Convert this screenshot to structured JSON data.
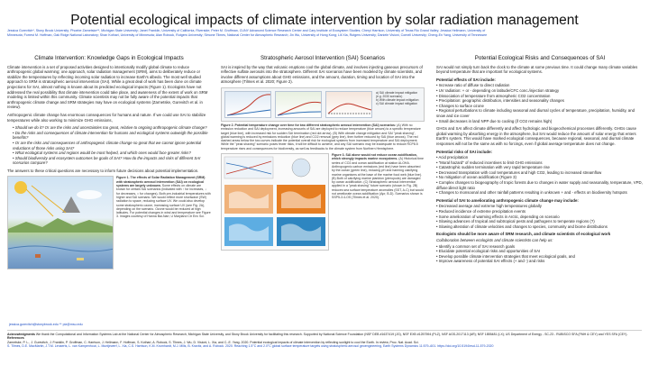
{
  "title": "Potential ecological impacts of climate intervention by solar radiation management",
  "authors": {
    "line1": "Jessica Gurevitch*, Stony Brook University; Phoebe Zarnetske**, Michigan State University; Janet Franklin, University of California, Riverside; Peter M. Groffman, CUNY Advanced Science Research Center and Cary Institute of Ecosystem Studies; Cheryl Harrison, University of Texas Rio Grand Valley; Jessica Hellmann, University of",
    "line2": "Minnesota; Forrest M. Hoffman, Oak Ridge National Laboratory; Shan Kothari, University of Minnesota; Alan Robock, Rutgers University; Simone Tilmes, National Center for Atmospheric Research; Jin Wu, University of Hong Kong; Lili Xia, Rutgers University; Daniele Visioni, Cornell University; Cheng-En Yang, University of Tennessee"
  },
  "col1": {
    "heading": "Climate Intervention: Knowledge Gaps in Ecological Impacts",
    "p1": "Climate intervention is a set of proposed activities designed to intentionally modify global climate to reduce anthropogenic global warming; one approach, solar radiation management (SRM), aims to deliberately reduce or stabilize the temperatures by reflecting incoming solar radiation to increase Earth's albedo. The most well studied approach to SRM is stratospheric aerosol intervention (SAI). While a great deal of work has been done on climate projections for SAI, almost nothing is known about its predicted ecological impacts (Figure 1). Ecologists have not addressed the real possibility that climate intervention could take place, and awareness of the extent of work on SRM modeling is limited within this community. Climate scientists may not be fully aware of the potential impacts that anthropogenic climate change and SRM strategies may have on ecological systems (Zarnetske, Gurevitch et al. in review).",
    "p2": "Anthropogenic climate change has enormous consequences for humans and nature. If we could use SAI to stabilize temperatures while also working to minimize GHG emissions,",
    "questions": [
      "Should we do it? Or are the risks and uncertainties too great, relative to ongoing anthropogenic climate change?",
      "Do the risks and consequences of climate intervention for humans and ecological systems outweigh the possible benefits?",
      "Or are the risks and consequences of anthropogenic climate change so great that we cannot ignore potential reductions of those risks using SAI?",
      "What ecological systems and regions would be most helped, and which ones would face greater risks?",
      "Should biodiversity and ecosystem outcomes be goals of SAI? How do the impacts and risks of different SAI scenarios compare?"
    ],
    "p3": "The answers to these critical questions are necessary to inform future decisions about potential implementation.",
    "fig1_caption_title": "Figure 1. The effects of Solar Radiation Management (SRM) with stratospheric aerosol intervention (SAI) on ecological systems are largely unknown.",
    "fig1_caption_body": "Some effects on climate are known for certain SAI scenarios (indicated with ↑ for increases, ↓ for decreases, ≈ for changes). Both pre-industrial temperatures with higher and SAI scenario. We would reflect more shortwave (SW) radiation to space, reducing surface UV. We could also develop some stratospheric ozone, increasing surface UV (see Fig. 2A), depending on the scenario. Ozone would be reduced at high latitudes. For potential changes in wind and temperature see Figure 3. Images courtesy of Hanna Bai-Narr, U Maryland Ctr Env Sci."
  },
  "col2": {
    "heading": "Stratospheric Aerosol Intervention (SAI) Scenarios",
    "p1": "SAI is inspired by the way that volcanic eruptions cool the global climate, and involves injecting gaseous precursors of reflective sulfate aerosols into the stratosphere. Different SAI scenarios have been modeled by climate scientists, and involve different assumptions about GHG emissions, and the amount, duration, timing and location of SAI into the atmosphere (Tilmes et al. 2020; Figure 2).",
    "panel_a": "a) SAI climate impact mitigation (e.g. 2030 scenario)",
    "panel_b": "b) With climate impact mitigation",
    "panel_c": "c) SAI climate impact mitigation",
    "fig2_caption_title": "Figure 2. Potential temperature change over time for two different stratospheric aerosol intervention (SAI) scenarios:",
    "fig2_caption_body": "(A) With no emission reduction and SAI deployment, increasing amounts of SAI are deployed to reduce temperature (blue arrows) to a specific temperature target (blue line), with increased risk for sudden SAI termination (red dot arrow). (B) With climate change mitigation and SAI \"peak shaving\", global warming is reduced by emissions reduction (blue line) and CO2 removal (grey line), then further reduced by SAI (blue arrows). The red dashed areas below the two curves indicate the potential overall risk for ecological systems from increased temperature and SAI deployment. While the \"peak shaving\" scenario poses fewer risks, it will be difficult to achieve, and any SAI scenario may be inadequate to reduce RCP8.5 temperature rises and consequences for biodiversity, as well as feedbacks to the climate system from Northern Hemisphere.",
    "fig3_caption_title": "Figure 3. SAI alone would not reduce ocean acidification, which strongly impacts marine ecosystems.",
    "fig3_caption_body": "(A) Historical time series of CO2 and ocean acidification at station ALOHA. Anthropogenic carbon emissions (red line) have been absorbed by the ocean (green line), reducing pH and harming calcifying marine organisms at the base of the marine food web (blue line). (B) Both of calcifying marine plankton (pteropods) are damaged by ocean acidification. (C) Stratospheric aerosol intervention applied in a \"peak shaving\" future scenario (shown in Fig. 2B) reduces sea surface temperature anomalies (SST, A-C) but would not ameliorate ocean acidification (Apr, B-D). Scenarios shown is SSP5-3.4-OS (Tilmes et al. 2020)."
  },
  "col3": {
    "heading": "Potential Ecological Risks and Consequences of SAI",
    "p1": "SAI would not simply turn back the clock to the climate at some previous time. It could change many climate variables beyond temperature that are important for ecological systems.",
    "effects_title": "Potential effects of SAI include:",
    "effects": [
      "Increase ratio of diffuse to direct radiation",
      "UV radiation: + or - depending on latitude/CFC conc./injection strategy",
      "Dissociation of temperature from atmospheric CO2 concentration",
      "Precipitation: geographic distribution, intensities and seasonality changes",
      "Changes to surface ozone",
      "Regional perturbations to climate including seasonal and diurnal cycles of temperature, precipitation, humidity, and snow and ice cover",
      "Small decreases in land NPP due to cooling (if CO2 remains high)"
    ],
    "p2": "GHGs and SAI affect climate differently and affect hydrologic and biogeochemical processes differently. GHGs cause global warming by absorbing energy in the atmosphere, but SAI would reduce the amount of solar energy that enters Earth's system. This would have marked ecological consequences, because regional, seasonal, and diurnal climate responses will not be the same as with no forcings, even if global average temperature does not change.",
    "risks_title": "Potential risks of SAI include:",
    "risks": [
      "Acid precipitation",
      "\"Moral hazard\" of reduced incentives to limit GHG emissions",
      "Catastrophic sudden termination with very rapid temperature rise",
      "Decreased transpiration with cool temperatures and high CO2, leading to increased streamflow",
      "No mitigation of ocean acidification  (Figure 3)",
      "Complex changes to biogeography of tropic forests due to changes in water supply and seasonality, temperature, VPD, diffuse:direct light ratio",
      "Changes to monsoonal and other rainfall patterns resulting in unknown + and - effects on biodiversity hotspots"
    ],
    "benefits_title": "Potential of SAI to ameliorating anthropogenic climate change may include:",
    "benefits": [
      "Decreased average and extreme high temperatures globally",
      "Reduced incidence of extreme precipitation events",
      "Some amelioration of warming effects in Arctic, depending on scenario",
      "Slowing advances of tropical and subtropical pests and pathogens to temperate regions (?)",
      "Slowing alteration of climate velocities and changes to species, community and biome distributions"
    ],
    "todo_title": "Ecologists should be more aware of SRM research, and climate scientists of ecological work",
    "todo_sub": "Collaboration between ecologists and climate scientists can help us:",
    "todo": [
      "Identify a common set of SAI research goals",
      "Elucidate potential ecological risks and opportunities of SAI",
      "Develop possible climate intervention strategies that meet ecological goals, and",
      "Improve awareness of potential SAI effects (+ and -) and risks"
    ]
  },
  "email": "jessica.gurevitch@stonybrook.edu  ** plz@msu.edu",
  "footer": {
    "ack_label": "Acknowledgments",
    "ack": "We thank the Computational and Information Systems Lab at the National Center for Atmospheric Research, Michigan State University, and Stony Brook University for facilitating this research. Supported by National Science Foundation (NSF DEB #1637419 (JG), NSF EXB #1257594 (PLZ), NSF AGS-2017113 (AR); NSF 1855481 (LX); US Department of Energy - SC-23 - RUBISCO SFA (FMH & CEY) and YES SFA (CEY).",
    "ref_label": "References",
    "ref1": "Zarnetske, P. L., J. Gurevitch, J. Franklin, P. Groffman, C. Harrison, J. Hellmann, F. Hoffman, S. Kothari, A. Robock, S. Tilmes, J. Wu, D. Visioni, L. Xia, and C.-E. Yang. 2020. Potential ecological impacts of climate intervention by reflecting sunlight to cool the Earth. In review, Proc. Nat. Acad. Sci.",
    "ref2": "S. Tilmes, D.E. MacMartin, J.T.M. Lenaerts, L. van Kampenhout, L. Muntjewerf, L. Xia, C.S. Harrison, K.M. Krumhardt, M.J. Mills, B. Kravitz, and A. Robock. 2020. Reaching 1.5°C and 2.0°C global surface temperature targets using stratospheric aerosol geoengineering, Earth Systems Dynamics 11:579–601. https://doi.org/10.5194/esd-11-579-2020"
  }
}
